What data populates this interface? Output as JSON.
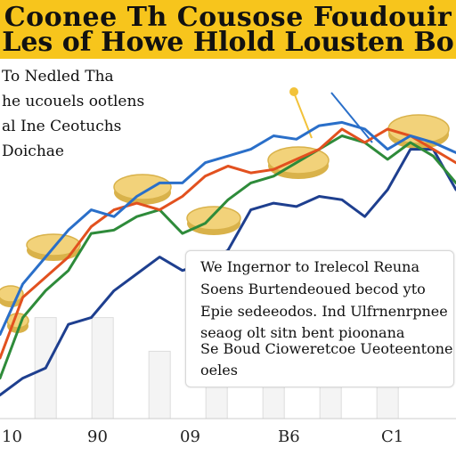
{
  "banner": {
    "title_line1": "Coonee Th Cousose Foudouir",
    "title_line2": "Les of Howe Hlold Lousten Bo"
  },
  "side_text": [
    "To Nedled Tha",
    "he ucouels ootlens",
    "al Ine Ceotuchs",
    "Doichae"
  ],
  "callout": {
    "lines": [
      "We Ingernor to Irelecol Reuna",
      "Soens Burtendeoued becod yto",
      "Epie sedeeodos. Ind Ulfrnenrpnee",
      "seaog olt sitn bent pioonana",
      "Se Boud Cioweretcoe Ueoteentone",
      "oeles"
    ]
  },
  "chart_data": {
    "type": "line",
    "title": "",
    "xlabel": "",
    "ylabel": "",
    "x_tick_labels": [
      "10",
      "90",
      "09",
      "B6",
      "C1"
    ],
    "grid": false,
    "legend": "none",
    "x": [
      0,
      1,
      2,
      3,
      4,
      5,
      6,
      7,
      8,
      9,
      10,
      11,
      12,
      13,
      14,
      15,
      16,
      17,
      18,
      19,
      20
    ],
    "xlim": [
      0,
      20
    ],
    "ylim": [
      0,
      100
    ],
    "series": [
      {
        "color": "#1e3f8f",
        "values": [
          7,
          12,
          15,
          28,
          30,
          38,
          43,
          48,
          44,
          46,
          50,
          62,
          64,
          63,
          66,
          65,
          60,
          68,
          80,
          80,
          68
        ]
      },
      {
        "color": "#2e8b3a",
        "values": [
          12,
          30,
          38,
          44,
          55,
          56,
          60,
          62,
          55,
          58,
          65,
          70,
          72,
          76,
          80,
          84,
          82,
          77,
          82,
          78,
          70
        ]
      },
      {
        "color": "#e2511f",
        "values": [
          18,
          36,
          42,
          48,
          57,
          62,
          64,
          62,
          66,
          72,
          75,
          73,
          74,
          77,
          80,
          86,
          82,
          86,
          84,
          80,
          76
        ]
      },
      {
        "color": "#2a6fc9",
        "values": [
          25,
          40,
          48,
          56,
          62,
          60,
          66,
          70,
          70,
          76,
          78,
          80,
          84,
          83,
          87,
          88,
          86,
          80,
          84,
          82,
          79
        ]
      }
    ],
    "bars": [
      30,
      30,
      20,
      20,
      20,
      20,
      20
    ]
  },
  "colors": {
    "banner": "#f7c51c",
    "coin": "#f2d27a",
    "coin_edge": "#d9b24a"
  }
}
